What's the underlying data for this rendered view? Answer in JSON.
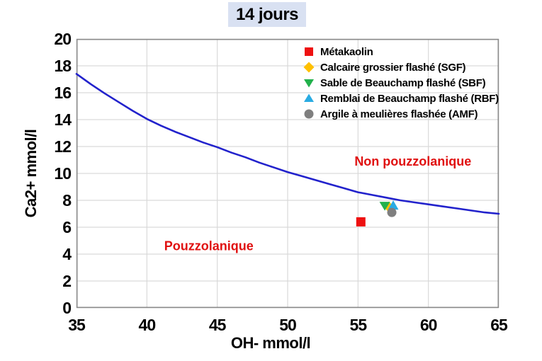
{
  "colors": {
    "title_background": "#D9E1F2",
    "curve": "#2222CC",
    "gridline": "#D9D9D9",
    "plot_border": "#8C8C8C",
    "annotation_red": "#E01010",
    "metakaolin_red": "#EE1111",
    "sgf_gold": "#FFC000",
    "sbf_green": "#22B14C",
    "rbf_cyan": "#29ABE2",
    "amf_gray": "#7F7F7F"
  },
  "chart_data": {
    "type": "scatter",
    "title": "14 jours",
    "xlabel": "OH- mmol/l",
    "ylabel": "Ca2+ mmol/l",
    "xlim": [
      35,
      65
    ],
    "ylim": [
      0,
      20
    ],
    "xticks": [
      35,
      40,
      45,
      50,
      55,
      60,
      65
    ],
    "yticks": [
      0,
      2,
      4,
      6,
      8,
      10,
      12,
      14,
      16,
      18,
      20
    ],
    "grid": true,
    "legend_position": "top-right-inside",
    "boundary_curve": {
      "color": "#2222CC",
      "points": [
        [
          35,
          17.4
        ],
        [
          36,
          16.65
        ],
        [
          37,
          15.95
        ],
        [
          38,
          15.3
        ],
        [
          39,
          14.65
        ],
        [
          40,
          14.05
        ],
        [
          41,
          13.55
        ],
        [
          42,
          13.1
        ],
        [
          43,
          12.7
        ],
        [
          44,
          12.3
        ],
        [
          45,
          11.95
        ],
        [
          46,
          11.55
        ],
        [
          47,
          11.2
        ],
        [
          48,
          10.8
        ],
        [
          49,
          10.45
        ],
        [
          50,
          10.1
        ],
        [
          51,
          9.8
        ],
        [
          52,
          9.5
        ],
        [
          53,
          9.2
        ],
        [
          54,
          8.9
        ],
        [
          55,
          8.6
        ],
        [
          56,
          8.4
        ],
        [
          57,
          8.2
        ],
        [
          58,
          8.0
        ],
        [
          59,
          7.85
        ],
        [
          60,
          7.7
        ],
        [
          61,
          7.55
        ],
        [
          62,
          7.4
        ],
        [
          63,
          7.25
        ],
        [
          64,
          7.1
        ],
        [
          65,
          7.0
        ]
      ]
    },
    "series": [
      {
        "name": "Métakaolin",
        "marker": "square",
        "color": "#EE1111",
        "points": [
          [
            55.2,
            6.4
          ]
        ]
      },
      {
        "name": "Calcaire grossier flashé (SGF)",
        "marker": "diamond",
        "color": "#FFC000",
        "points": [
          [
            57.2,
            7.5
          ]
        ]
      },
      {
        "name": "Sable de Beauchamp flashé (SBF)",
        "marker": "triangle-down",
        "color": "#22B14C",
        "points": [
          [
            56.9,
            7.6
          ]
        ]
      },
      {
        "name": "Remblai de Beauchamp flashé (RBF)",
        "marker": "triangle-up",
        "color": "#29ABE2",
        "points": [
          [
            57.5,
            7.6
          ]
        ]
      },
      {
        "name": "Argile à meulières flashée (AMF)",
        "marker": "circle",
        "color": "#7F7F7F",
        "points": [
          [
            57.4,
            7.1
          ]
        ]
      }
    ],
    "annotations": [
      {
        "text": "Non pouzzolanique",
        "x": 58.9,
        "y": 10.9,
        "color": "#E01010"
      },
      {
        "text": "Pouzzolanique",
        "x": 44.4,
        "y": 4.6,
        "color": "#E01010"
      }
    ]
  }
}
